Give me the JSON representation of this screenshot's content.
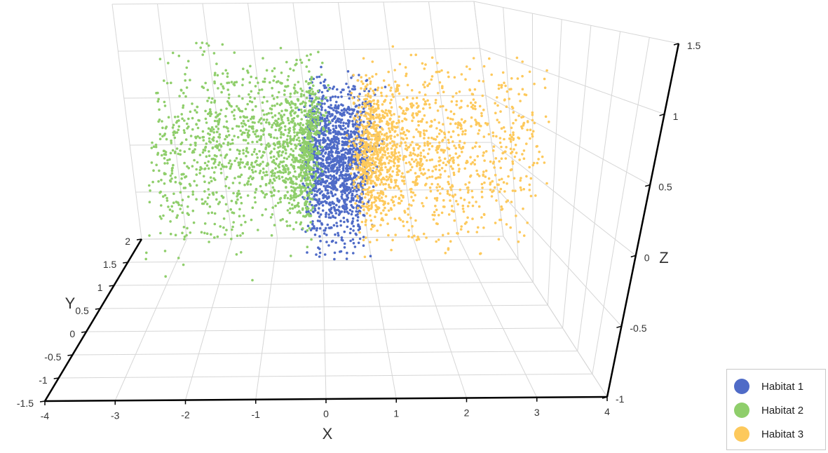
{
  "chart_data": {
    "type": "scatter",
    "projection": "3d",
    "xlabel": "X",
    "ylabel": "Y",
    "zlabel": "Z",
    "xlim": [
      -4,
      4
    ],
    "ylim": [
      -1.5,
      2
    ],
    "zlim": [
      -1,
      1.5
    ],
    "x_ticks": [
      "-4",
      "-3",
      "-2",
      "-1",
      "0",
      "1",
      "2",
      "3",
      "4"
    ],
    "y_ticks": [
      "-1.5",
      "-1",
      "-0.5",
      "0",
      "0.5",
      "1",
      "1.5",
      "2"
    ],
    "z_ticks": [
      "-1",
      "-0.5",
      "0",
      "0.5",
      "1",
      "1.5"
    ],
    "grid": true,
    "legend_position": "bottom-right",
    "series": [
      {
        "name": "Habitat 1",
        "color": "#4f6bc7",
        "x_range": [
          -0.45,
          0.5
        ],
        "z_range": [
          -0.35,
          1.05
        ]
      },
      {
        "name": "Habitat 2",
        "color": "#8fce6b",
        "x_range": [
          -3.2,
          -0.45
        ],
        "z_range": [
          -0.4,
          1.3
        ]
      },
      {
        "name": "Habitat 3",
        "color": "#fdc95c",
        "x_range": [
          0.5,
          3.3
        ],
        "z_range": [
          -0.4,
          1.25
        ]
      }
    ]
  }
}
